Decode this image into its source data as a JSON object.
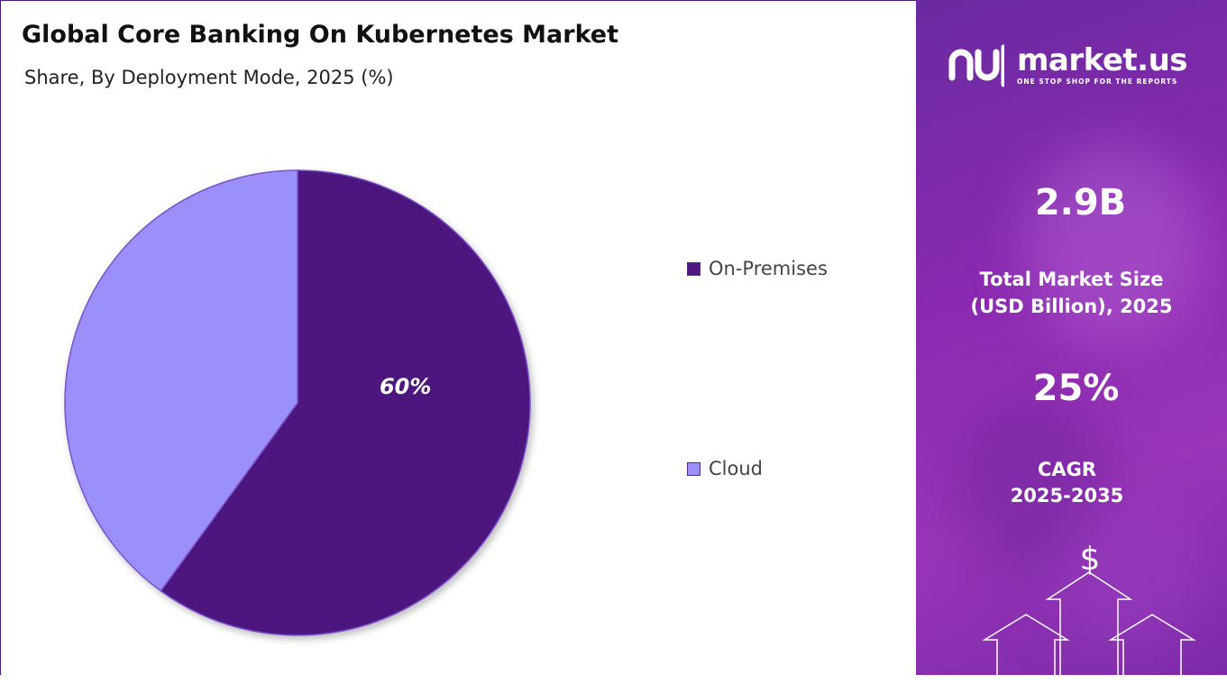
{
  "header": {
    "title": "Global Core Banking On Kubernetes Market",
    "subtitle": "Share, By Deployment Mode, 2025 (%)"
  },
  "chart_data": {
    "type": "pie",
    "title": "Global Core Banking On Kubernetes Market",
    "subtitle": "Share, By Deployment Mode, 2025 (%)",
    "slices": [
      {
        "label": "On-Premises",
        "value": 60,
        "color": "#4e177f",
        "data_label": "60%"
      },
      {
        "label": "Cloud",
        "value": 40,
        "color": "#9b8ffc",
        "data_label": ""
      }
    ],
    "legend_position": "right"
  },
  "legend": {
    "items": [
      {
        "label": "On-Premises",
        "color": "#4e177f"
      },
      {
        "label": "Cloud",
        "color": "#9b8ffc"
      }
    ]
  },
  "brand": {
    "name": "market.us",
    "tagline": "ONE STOP SHOP FOR THE REPORTS",
    "icon": "market-us-logo-icon"
  },
  "stats": {
    "market_size_value": "2.9B",
    "market_size_label_line1": "Total Market Size",
    "market_size_label_line2": "(USD Billion), 2025",
    "cagr_value": "25%",
    "cagr_label_line1": "CAGR",
    "cagr_label_line2": "2025-2035"
  },
  "decor": {
    "dollar_symbol": "$",
    "icon": "growth-arrows-icon"
  },
  "colors": {
    "on_premises": "#4e177f",
    "cloud": "#9b8ffc",
    "panel_purple": "#8a2ab0"
  }
}
